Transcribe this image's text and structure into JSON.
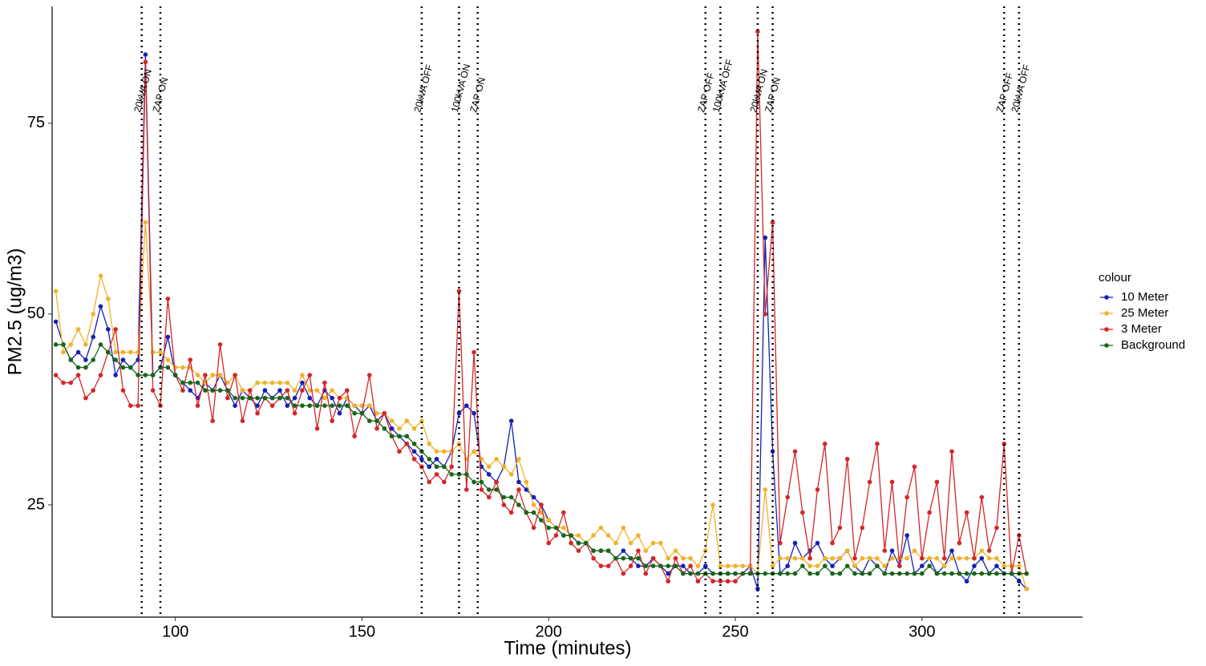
{
  "chart_data": {
    "type": "line",
    "xlabel": "Time (minutes)",
    "ylabel": "PM2.5 (ug/m3)",
    "legend_title": "colour",
    "legend": "right",
    "grid": false,
    "xlim": [
      67,
      343
    ],
    "xticks": [
      100,
      150,
      200,
      250,
      300
    ],
    "ylim": [
      10.3,
      90.3
    ],
    "yticks": [
      25,
      50,
      75
    ],
    "x": [
      68,
      70,
      72,
      74,
      76,
      78,
      80,
      82,
      84,
      86,
      88,
      90,
      92,
      94,
      96,
      98,
      100,
      102,
      104,
      106,
      108,
      110,
      112,
      114,
      116,
      118,
      120,
      122,
      124,
      126,
      128,
      130,
      132,
      134,
      136,
      138,
      140,
      142,
      144,
      146,
      148,
      150,
      152,
      154,
      156,
      158,
      160,
      162,
      164,
      166,
      168,
      170,
      172,
      174,
      176,
      178,
      180,
      182,
      184,
      186,
      188,
      190,
      192,
      194,
      196,
      198,
      200,
      202,
      204,
      206,
      208,
      210,
      212,
      214,
      216,
      218,
      220,
      222,
      224,
      226,
      228,
      230,
      232,
      234,
      236,
      238,
      240,
      242,
      244,
      246,
      248,
      250,
      252,
      254,
      256,
      258,
      260,
      262,
      264,
      266,
      268,
      270,
      272,
      274,
      276,
      278,
      280,
      282,
      284,
      286,
      288,
      290,
      292,
      294,
      296,
      298,
      300,
      302,
      304,
      306,
      308,
      310,
      312,
      314,
      316,
      318,
      320,
      322,
      324,
      326,
      328
    ],
    "series": [
      {
        "name": "10 Meter",
        "color": "#1420b4",
        "values": [
          49,
          46,
          44,
          45,
          44,
          47,
          51,
          48,
          42,
          44,
          43,
          44,
          84,
          42,
          43,
          47,
          42,
          41,
          40,
          39,
          41,
          40,
          42,
          40,
          38,
          40,
          39,
          38,
          40,
          39,
          40,
          38,
          39,
          41,
          39,
          38,
          40,
          39,
          37,
          39,
          38,
          37,
          38,
          36,
          37,
          35,
          34,
          33,
          32,
          31,
          30,
          31,
          30,
          32,
          37,
          38,
          37,
          30,
          29,
          28,
          30,
          36,
          28,
          27,
          26,
          25,
          23,
          22,
          21,
          21,
          20,
          20,
          19,
          19,
          19,
          18,
          19,
          18,
          17,
          17,
          18,
          17,
          16,
          17,
          17,
          16,
          16,
          17,
          16,
          16,
          16,
          16,
          16,
          17,
          14,
          60,
          32,
          16,
          17,
          20,
          18,
          19,
          20,
          18,
          17,
          18,
          19,
          17,
          16,
          18,
          17,
          16,
          19,
          17,
          21,
          16,
          17,
          18,
          16,
          17,
          19,
          16,
          15,
          17,
          18,
          16,
          17,
          16,
          16,
          15,
          14
        ]
      },
      {
        "name": "25 Meter",
        "color": "#efb22c",
        "values": [
          53,
          45,
          46,
          48,
          46,
          50,
          55,
          52,
          45,
          45,
          45,
          45,
          62,
          45,
          45,
          44,
          43,
          43,
          43,
          42,
          41,
          42,
          42,
          41,
          42,
          40,
          40,
          41,
          41,
          41,
          41,
          41,
          40,
          42,
          40,
          40,
          39,
          40,
          39,
          39,
          38,
          38,
          38,
          37,
          37,
          36,
          35,
          36,
          35,
          36,
          33,
          32,
          32,
          32,
          33,
          31,
          32,
          31,
          30,
          31,
          30,
          29,
          31,
          28,
          25,
          24,
          23,
          22,
          22,
          21,
          21,
          20,
          21,
          22,
          21,
          20,
          22,
          20,
          21,
          19,
          20,
          20,
          18,
          19,
          18,
          18,
          17,
          19,
          25,
          17,
          17,
          17,
          17,
          17,
          16,
          27,
          17,
          18,
          18,
          18,
          18,
          17,
          17,
          18,
          18,
          18,
          19,
          17,
          18,
          18,
          18,
          17,
          18,
          18,
          18,
          19,
          18,
          18,
          18,
          17,
          18,
          18,
          18,
          18,
          19,
          18,
          18,
          17,
          17,
          17,
          14
        ]
      },
      {
        "name": "3 Meter",
        "color": "#d2272a",
        "values": [
          42,
          41,
          41,
          42,
          39,
          40,
          42,
          45,
          48,
          40,
          38,
          38,
          83,
          40,
          38,
          52,
          42,
          40,
          44,
          38,
          42,
          36,
          46,
          39,
          42,
          36,
          40,
          37,
          39,
          38,
          39,
          40,
          37,
          40,
          42,
          35,
          41,
          36,
          39,
          40,
          34,
          37,
          42,
          35,
          37,
          34,
          32,
          33,
          31,
          30,
          28,
          29,
          28,
          30,
          53,
          27,
          45,
          27,
          26,
          28,
          25,
          24,
          27,
          24,
          22,
          25,
          20,
          21,
          24,
          20,
          19,
          20,
          18,
          17,
          17,
          18,
          16,
          17,
          19,
          16,
          18,
          17,
          15,
          18,
          16,
          17,
          15,
          16,
          15,
          15,
          15,
          15,
          16,
          16,
          87,
          50,
          62,
          20,
          26,
          32,
          24,
          18,
          27,
          33,
          20,
          22,
          31,
          18,
          22,
          28,
          33,
          19,
          28,
          17,
          26,
          30,
          18,
          24,
          28,
          18,
          32,
          20,
          24,
          18,
          26,
          19,
          22,
          33,
          16,
          21,
          16
        ]
      },
      {
        "name": "Background",
        "color": "#17661a",
        "values": [
          46,
          46,
          44,
          43,
          43,
          44,
          46,
          45,
          44,
          43,
          43,
          42,
          42,
          42,
          43,
          43,
          42,
          41,
          41,
          41,
          40,
          40,
          40,
          40,
          39,
          39,
          39,
          39,
          39,
          39,
          39,
          39,
          38,
          38,
          38,
          38,
          38,
          38,
          38,
          38,
          37,
          37,
          36,
          36,
          35,
          34,
          34,
          34,
          33,
          32,
          31,
          30,
          30,
          29,
          29,
          29,
          28,
          28,
          27,
          27,
          26,
          26,
          25,
          24,
          24,
          23,
          22,
          22,
          21,
          21,
          20,
          20,
          19,
          19,
          19,
          18,
          18,
          18,
          18,
          17,
          17,
          17,
          17,
          17,
          16,
          16,
          16,
          16,
          16,
          16,
          16,
          16,
          16,
          16,
          16,
          16,
          16,
          16,
          16,
          16,
          17,
          16,
          16,
          17,
          16,
          16,
          17,
          16,
          16,
          16,
          17,
          16,
          16,
          16,
          16,
          16,
          16,
          17,
          16,
          16,
          16,
          16,
          16,
          16,
          16,
          16,
          16,
          16,
          16,
          16,
          16
        ]
      }
    ],
    "vlines": [
      {
        "x": 91,
        "label": "20kVA ON"
      },
      {
        "x": 96,
        "label": "ZAP ON"
      },
      {
        "x": 166,
        "label": "20kVA OFF"
      },
      {
        "x": 176,
        "label": "100kVA ON"
      },
      {
        "x": 181,
        "label": "ZAP ON"
      },
      {
        "x": 242,
        "label": "ZAP OFF"
      },
      {
        "x": 246,
        "label": "100kVA OFF"
      },
      {
        "x": 256,
        "label": "20kVA ON"
      },
      {
        "x": 260,
        "label": "ZAP ON"
      },
      {
        "x": 322,
        "label": "ZAP OFF"
      },
      {
        "x": 326,
        "label": "20kVA OFF"
      }
    ]
  }
}
